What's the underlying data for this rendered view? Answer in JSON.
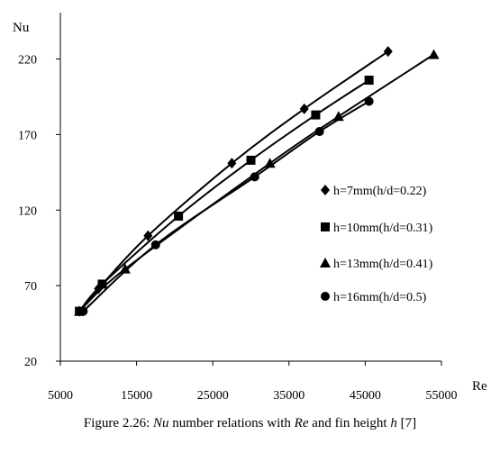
{
  "caption": {
    "prefix": "Figure 2.26: ",
    "nu": "Nu",
    "mid1": " number relations with ",
    "re": "Re",
    "mid2": " and fin height ",
    "h": "h",
    "suffix": " [7]"
  },
  "chart_data": {
    "type": "line",
    "title": "",
    "ylabel": "Nu",
    "xlabel": "Re",
    "xlim": [
      5000,
      55000
    ],
    "ylim": [
      20,
      240
    ],
    "xticks": [
      "5000",
      "15000",
      "25000",
      "35000",
      "45000",
      "55000"
    ],
    "yticks": [
      "20",
      "70",
      "120",
      "170",
      "220"
    ],
    "xtick_values": [
      5000,
      15000,
      25000,
      35000,
      45000,
      55000
    ],
    "ytick_values": [
      20,
      70,
      120,
      170,
      220
    ],
    "grid": false,
    "legend_position": "right-inside",
    "series": [
      {
        "name": "h=7mm(h/d=0.22)",
        "marker": "diamond",
        "x": [
          7500,
          10000,
          16500,
          27500,
          37000,
          48000
        ],
        "y": [
          53,
          68,
          103,
          151,
          187,
          225
        ]
      },
      {
        "name": "h=10mm(h/d=0.31)",
        "marker": "square",
        "x": [
          7500,
          10500,
          20500,
          30000,
          38500,
          45500
        ],
        "y": [
          53,
          71,
          116,
          153,
          183,
          206
        ]
      },
      {
        "name": "h=13mm(h/d=0.41)",
        "marker": "triangle",
        "x": [
          7500,
          13500,
          32500,
          41500,
          54000
        ],
        "y": [
          53,
          81,
          151,
          182,
          223
        ]
      },
      {
        "name": "h=16mm(h/d=0.5)",
        "marker": "circle",
        "x": [
          8000,
          17500,
          30500,
          39000,
          45500
        ],
        "y": [
          53,
          97,
          142,
          172,
          192
        ]
      }
    ]
  }
}
